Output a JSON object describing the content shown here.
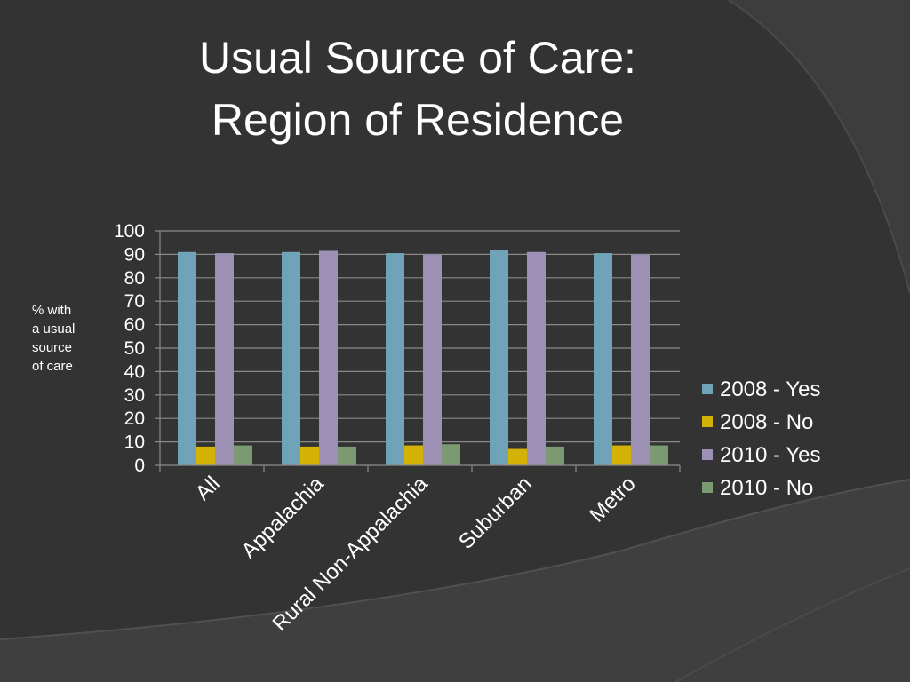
{
  "slide": {
    "title_line1": "Usual Source of Care:",
    "title_line2": "Region of Residence",
    "background": "#333333"
  },
  "chart_data": {
    "type": "bar",
    "ylabel": "% with\na usual\nsource\nof care",
    "xlabel": "",
    "ylim": [
      0,
      100
    ],
    "yticks": [
      0,
      10,
      20,
      30,
      40,
      50,
      60,
      70,
      80,
      90,
      100
    ],
    "grid": true,
    "legend_position": "right",
    "categories": [
      "All",
      "Appalachia",
      "Rural Non-Appalachia",
      "Suburban",
      "Metro"
    ],
    "series": [
      {
        "name": "2008 - Yes",
        "color": "#6fa4b8",
        "values": [
          91,
          91,
          90.5,
          92,
          90.5
        ]
      },
      {
        "name": "2008 - No",
        "color": "#d4b106",
        "values": [
          8,
          8,
          8.5,
          7,
          8.5
        ]
      },
      {
        "name": "2010 - Yes",
        "color": "#9c91b4",
        "values": [
          90.5,
          91.5,
          90,
          91,
          90
        ]
      },
      {
        "name": "2010 - No",
        "color": "#7b9a72",
        "values": [
          8.5,
          8,
          9,
          8,
          8.5
        ]
      }
    ]
  }
}
